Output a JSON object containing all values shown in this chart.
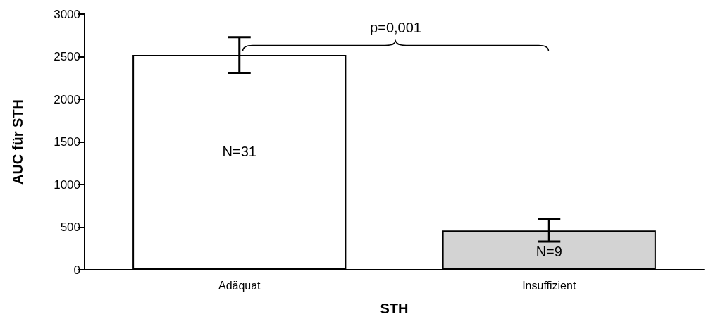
{
  "chart_data": {
    "type": "bar",
    "xlabel": "STH",
    "ylabel": "AUC für STH",
    "categories": [
      "Adäquat",
      "Insuffizient"
    ],
    "values": [
      2520,
      460
    ],
    "colors": [
      "#ffffff",
      "#d3d3d3"
    ],
    "errors": [
      210,
      130
    ],
    "ylim": [
      0,
      3000
    ],
    "yticks": [
      0,
      500,
      1000,
      1500,
      2000,
      2500,
      3000
    ],
    "grid": false,
    "annotations": [
      "N=31",
      "N=9",
      "p=0,001"
    ]
  }
}
